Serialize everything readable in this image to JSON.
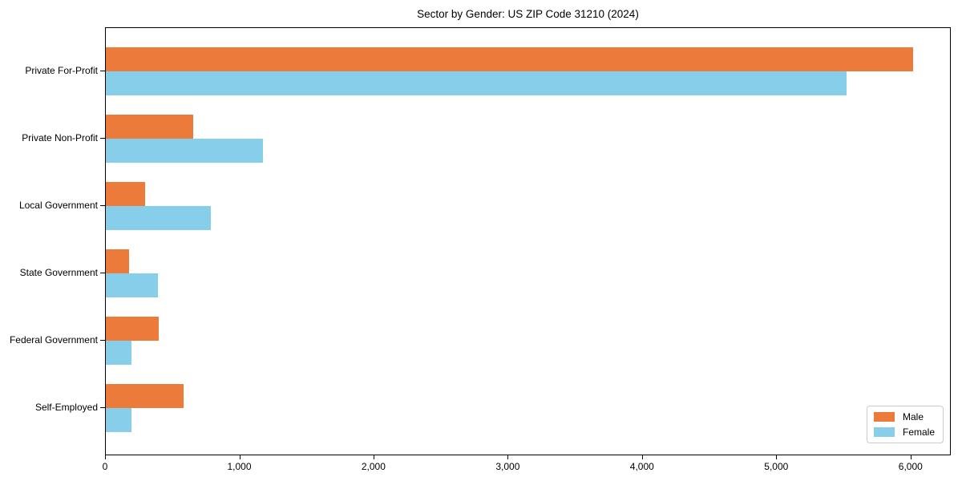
{
  "title": "Sector by Gender: US ZIP Code 31210 (2024)",
  "chart_data": {
    "type": "bar",
    "orientation": "horizontal",
    "title": "Sector by Gender: US ZIP Code 31210 (2024)",
    "xlabel": "",
    "ylabel": "",
    "categories": [
      "Private For-Profit",
      "Private Non-Profit",
      "Local Government",
      "State Government",
      "Federal Government",
      "Self-Employed"
    ],
    "series": [
      {
        "name": "Male",
        "color": "#eb7a3b",
        "values": [
          6015,
          650,
          290,
          170,
          395,
          580
        ]
      },
      {
        "name": "Female",
        "color": "#87ceeb",
        "values": [
          5520,
          1170,
          780,
          390,
          190,
          190
        ]
      }
    ],
    "xlim": [
      0,
      6300
    ],
    "xticks": [
      0,
      1000,
      2000,
      3000,
      4000,
      5000,
      6000
    ],
    "xtick_labels": [
      "0",
      "1,000",
      "2,000",
      "3,000",
      "4,000",
      "5,000",
      "6,000"
    ],
    "legend_position": "lower right",
    "grid": false
  }
}
